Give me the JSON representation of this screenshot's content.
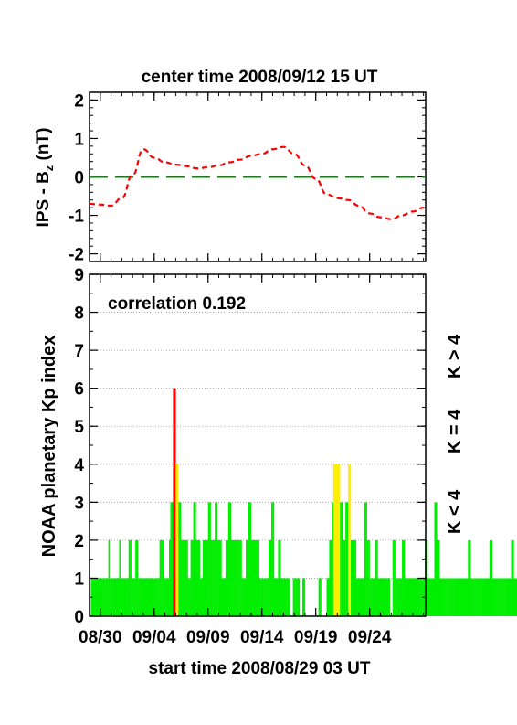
{
  "top_title": "center time 2008/09/12 15 UT",
  "bottom_title": "start time 2008/08/29 03 UT",
  "correlation_label": "correlation 0.192",
  "colors": {
    "red": "#ff0000",
    "yellow": "#ffee00",
    "green": "#00ee00",
    "green_dashed": "#008800"
  },
  "legend": {
    "red": "K > 4",
    "yellow": "K = 4",
    "green": "K < 4"
  },
  "chart_data": [
    {
      "type": "line",
      "ylabel_main": "IPS - B",
      "ylabel_sub": "z",
      "ylabel_unit": " (nT)",
      "ylim": [
        -2.2,
        2.2
      ],
      "yticks": [
        "2",
        "1",
        "0",
        "-1",
        "-2"
      ],
      "ytick_values": [
        2,
        1,
        0,
        -1,
        -2
      ],
      "series": [
        {
          "style": "dashed-red",
          "x_days": [
            0,
            1,
            2,
            3,
            4,
            5,
            6,
            7,
            8,
            9,
            10,
            11,
            12,
            13,
            14,
            15,
            16,
            17,
            18,
            19,
            20,
            21,
            22,
            23,
            24,
            25,
            26,
            27,
            28,
            29,
            30,
            31
          ],
          "values": [
            -0.7,
            -0.72,
            -0.75,
            -0.55,
            0.05,
            0.72,
            0.5,
            0.38,
            0.32,
            0.28,
            0.22,
            0.25,
            0.3,
            0.38,
            0.45,
            0.55,
            0.6,
            0.72,
            0.78,
            0.6,
            0.3,
            -0.05,
            -0.45,
            -0.55,
            -0.6,
            -0.75,
            -0.95,
            -1.05,
            -1.1,
            -1.0,
            -0.9,
            -0.8
          ]
        },
        {
          "style": "dashed-green",
          "constant": 0
        }
      ]
    },
    {
      "type": "bar",
      "ylabel": "NOAA planetary Kp index",
      "ylim": [
        0,
        9
      ],
      "yticks": [
        "0",
        "1",
        "2",
        "3",
        "4",
        "5",
        "6",
        "7",
        "8",
        "9"
      ],
      "xlabels": [
        "08/30",
        "09/04",
        "09/09",
        "09/14",
        "09/19",
        "09/24"
      ],
      "xtick_days": [
        1,
        6,
        11,
        16,
        21,
        26
      ],
      "x_days_range": [
        0,
        31.2
      ],
      "bar_width_days": 0.125,
      "kp": [
        0,
        1,
        1,
        1,
        1,
        1,
        1,
        1,
        1,
        1,
        1,
        1,
        1,
        1,
        2,
        1,
        1,
        1,
        1,
        1,
        1,
        1,
        2,
        1,
        1,
        1,
        1,
        1,
        1,
        2,
        2,
        1,
        1,
        1,
        2,
        2,
        1,
        1,
        1,
        1,
        1,
        1,
        1,
        1,
        1,
        1,
        1,
        1,
        1,
        1,
        1,
        1,
        2,
        2,
        2,
        1,
        1,
        1,
        1,
        2,
        3,
        3,
        6,
        6,
        4,
        4,
        3,
        3,
        2,
        2,
        2,
        2,
        2,
        1,
        1,
        2,
        2,
        3,
        3,
        2,
        2,
        2,
        1,
        1,
        2,
        2,
        2,
        2,
        3,
        3,
        2,
        2,
        2,
        3,
        3,
        2,
        2,
        2,
        1,
        1,
        1,
        2,
        2,
        3,
        3,
        2,
        2,
        2,
        2,
        2,
        2,
        2,
        2,
        1,
        1,
        1,
        2,
        2,
        3,
        3,
        2,
        2,
        2,
        2,
        2,
        2,
        1,
        1,
        1,
        1,
        1,
        1,
        1,
        2,
        2,
        3,
        3,
        1,
        1,
        1,
        2,
        2,
        1,
        1,
        1,
        1,
        1,
        1,
        1,
        0,
        0,
        1,
        1,
        1,
        1,
        1,
        0,
        0,
        1,
        1,
        0,
        0,
        0,
        0,
        0,
        0,
        0,
        0,
        0,
        0,
        1,
        1,
        0,
        0,
        0,
        0,
        1,
        1,
        2,
        2,
        3,
        4,
        4,
        4,
        4,
        4,
        3,
        3,
        2,
        2,
        3,
        3,
        4,
        4,
        2,
        2,
        2,
        2,
        1,
        1,
        1,
        1,
        1,
        1,
        3,
        3,
        2,
        2,
        1,
        1,
        1,
        1,
        2,
        2,
        1,
        1,
        1,
        1,
        1,
        1,
        1,
        1,
        1,
        0,
        0,
        2,
        2,
        1,
        1,
        1,
        1,
        1,
        2,
        2,
        1,
        1,
        1,
        1,
        1,
        1,
        1,
        1,
        1,
        1,
        1,
        1,
        1,
        1,
        1,
        2,
        2,
        1,
        1,
        1,
        1,
        1,
        3,
        3,
        2,
        2,
        1,
        1,
        1,
        1,
        1,
        1,
        1,
        1,
        1,
        1,
        1,
        1,
        1,
        1,
        1,
        1,
        1,
        1,
        1,
        1,
        1,
        2,
        2,
        1,
        1,
        1,
        1,
        1,
        1,
        1,
        1,
        1,
        1,
        1,
        1,
        1,
        1,
        2,
        2,
        1,
        1,
        1,
        1,
        1,
        1,
        1,
        1,
        1,
        1,
        1,
        1,
        1,
        1,
        2,
        2,
        1,
        1,
        1,
        1,
        1,
        3,
        3,
        1,
        1,
        1,
        1,
        1,
        1,
        1,
        1,
        1,
        1,
        1,
        1,
        1,
        1,
        1,
        1,
        1,
        1,
        1,
        1,
        1,
        1,
        1,
        2,
        2,
        1,
        1,
        1,
        1,
        1,
        1,
        1,
        1,
        1,
        1,
        1,
        1,
        1,
        1,
        1,
        3,
        3,
        2,
        2,
        1,
        1,
        1,
        1,
        1,
        1,
        1,
        1,
        1,
        1,
        1,
        1,
        1,
        1,
        1,
        1,
        1
      ]
    }
  ]
}
